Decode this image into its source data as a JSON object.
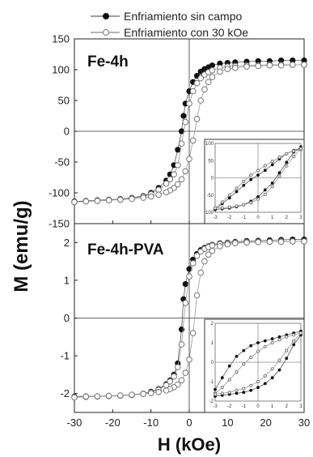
{
  "chart_data": {
    "type": "scatter",
    "xlabel": "H (kOe)",
    "ylabel": "M (emu/g)",
    "xlim": [
      -30,
      30
    ],
    "x_ticks": [
      -30,
      -20,
      -10,
      0,
      10,
      20,
      30
    ],
    "legend": {
      "placement": "top",
      "entries": [
        {
          "label": "Enfriamiento sin campo",
          "marker": "filled-circle"
        },
        {
          "label": "Enfriamiento con 30 kOe",
          "marker": "open-circle"
        }
      ]
    },
    "panels": [
      {
        "label": "Fe-4h",
        "ylim": [
          -150,
          150
        ],
        "y_ticks": [
          150,
          100,
          50,
          0,
          -50,
          -100,
          -150
        ],
        "series": [
          {
            "marker": "filled-circle",
            "x": [
              -30,
              -27,
              -24,
              -21,
              -18,
              -15,
              -12,
              -10,
              -8,
              -6,
              -5,
              -4,
              -3,
              -2,
              -1.5,
              -1,
              0,
              1,
              2,
              3,
              4,
              5,
              6,
              8,
              10,
              12,
              15,
              18,
              21,
              24,
              27,
              30
            ],
            "y": [
              -114,
              -113,
              -112,
              -111,
              -110,
              -108,
              -105,
              -100,
              -92,
              -80,
              -70,
              -55,
              -30,
              0,
              25,
              45,
              65,
              80,
              90,
              97,
              101,
              104,
              107,
              110,
              111,
              112,
              113,
              114,
              114,
              115,
              115,
              115
            ]
          },
          {
            "marker": "open-circle",
            "x": [
              -30,
              -27,
              -24,
              -21,
              -18,
              -15,
              -12,
              -10,
              -8,
              -6,
              -5,
              -4,
              -3,
              -2,
              -1,
              0,
              1,
              2,
              3,
              4,
              5,
              6,
              8,
              10,
              12,
              15,
              18,
              21,
              24,
              27,
              30
            ],
            "y": [
              -115,
              -114,
              -113,
              -112,
              -111,
              -109,
              -106,
              -102,
              -95,
              -85,
              -78,
              -70,
              -55,
              -20,
              15,
              45,
              65,
              78,
              86,
              92,
              96,
              99,
              103,
              105,
              106,
              107,
              107,
              108,
              108,
              108,
              108
            ]
          },
          {
            "marker": "open-circle",
            "x": [
              30,
              27,
              24,
              21,
              18,
              15,
              12,
              10,
              8,
              6,
              5,
              4,
              3,
              2,
              1,
              0,
              -1,
              -2,
              -3,
              -4,
              -5,
              -6,
              -8,
              -10,
              -12,
              -15,
              -18,
              -21,
              -24,
              -27,
              -30
            ],
            "y": [
              108,
              108,
              107,
              107,
              106,
              105,
              103,
              101,
              97,
              88,
              80,
              68,
              50,
              20,
              -15,
              -45,
              -65,
              -78,
              -86,
              -92,
              -96,
              -99,
              -103,
              -106,
              -108,
              -110,
              -111,
              -112,
              -113,
              -114,
              -115
            ]
          }
        ],
        "inset": {
          "xlim": [
            -3,
            3
          ],
          "ylim": [
            -100,
            100
          ],
          "x_ticks": [
            -3,
            -2,
            -1,
            0,
            1,
            2,
            3
          ],
          "y_ticks": [
            100,
            50,
            0,
            -50,
            -100
          ],
          "series": [
            {
              "marker": "filled-circle",
              "x": [
                -3,
                -2.5,
                -2,
                -1.5,
                -1,
                -0.5,
                0,
                0.5,
                1,
                1.5,
                2,
                2.5,
                3
              ],
              "y": [
                -92,
                -75,
                -58,
                -40,
                -22,
                -5,
                8,
                22,
                38,
                55,
                70,
                80,
                85
              ]
            },
            {
              "marker": "filled-circle",
              "x": [
                3,
                2.5,
                2,
                1.5,
                1,
                0.5,
                0,
                -0.5,
                -1,
                -1.5,
                -2,
                -2.5,
                -3
              ],
              "y": [
                90,
                75,
                45,
                15,
                -15,
                -35,
                -55,
                -68,
                -78,
                -84,
                -88,
                -90,
                -92
              ]
            },
            {
              "marker": "open-circle",
              "x": [
                -3,
                -2.5,
                -2,
                -1.5,
                -1,
                -0.5,
                0,
                0.5,
                1,
                1.5,
                2,
                2.5,
                3
              ],
              "y": [
                -88,
                -70,
                -50,
                -30,
                -10,
                8,
                22,
                35,
                48,
                60,
                70,
                78,
                82
              ]
            },
            {
              "marker": "open-circle",
              "x": [
                3,
                2.5,
                2,
                1.5,
                1,
                0.5,
                0,
                -0.5,
                -1,
                -1.5,
                -2,
                -2.5,
                -3
              ],
              "y": [
                85,
                62,
                35,
                5,
                -25,
                -48,
                -62,
                -72,
                -78,
                -82,
                -85,
                -87,
                -88
              ]
            }
          ]
        }
      },
      {
        "label": "Fe-4h-PVA",
        "ylim": [
          -2.5,
          2.5
        ],
        "y_ticks": [
          2,
          1,
          0,
          -1,
          -2
        ],
        "series": [
          {
            "marker": "filled-circle",
            "x": [
              -30,
              -27,
              -24,
              -21,
              -18,
              -15,
              -12,
              -10,
              -8,
              -6,
              -5,
              -4,
              -3,
              -2,
              -1.5,
              -1,
              0,
              1,
              2,
              3,
              4,
              5,
              6,
              8,
              10,
              12,
              15,
              18,
              21,
              24,
              27,
              30
            ],
            "y": [
              -2.08,
              -2.07,
              -2.07,
              -2.06,
              -2.05,
              -2.03,
              -2.0,
              -1.95,
              -1.88,
              -1.75,
              -1.65,
              -1.5,
              -1.2,
              -0.3,
              0.5,
              0.9,
              1.3,
              1.55,
              1.7,
              1.8,
              1.86,
              1.9,
              1.94,
              1.98,
              2.0,
              2.02,
              2.04,
              2.05,
              2.06,
              2.07,
              2.08,
              2.08
            ]
          },
          {
            "marker": "open-circle",
            "x": [
              -30,
              -27,
              -24,
              -21,
              -18,
              -15,
              -12,
              -10,
              -8,
              -6,
              -5,
              -4,
              -3,
              -2,
              -1,
              0,
              1,
              2,
              3,
              4,
              5,
              6,
              8,
              10,
              12,
              15,
              18,
              21,
              24,
              27,
              30
            ],
            "y": [
              -2.1,
              -2.09,
              -2.08,
              -2.07,
              -2.06,
              -2.04,
              -2.01,
              -1.97,
              -1.9,
              -1.78,
              -1.68,
              -1.55,
              -1.3,
              -0.7,
              0.4,
              1.1,
              1.45,
              1.65,
              1.76,
              1.83,
              1.88,
              1.92,
              1.96,
              1.98,
              2.0,
              2.01,
              2.02,
              2.02,
              2.03,
              2.03,
              2.03
            ]
          },
          {
            "marker": "open-circle",
            "x": [
              30,
              27,
              24,
              21,
              18,
              15,
              12,
              10,
              8,
              6,
              5,
              4,
              3,
              2,
              1,
              0,
              -1,
              -2,
              -3,
              -4,
              -5,
              -6,
              -8,
              -10,
              -12,
              -15,
              -18,
              -21,
              -24,
              -27,
              -30
            ],
            "y": [
              2.03,
              2.03,
              2.02,
              2.02,
              2.01,
              2.0,
              1.98,
              1.95,
              1.9,
              1.78,
              1.68,
              1.5,
              1.2,
              0.6,
              -0.4,
              -1.1,
              -1.45,
              -1.65,
              -1.76,
              -1.83,
              -1.88,
              -1.92,
              -1.96,
              -1.99,
              -2.01,
              -2.03,
              -2.05,
              -2.06,
              -2.07,
              -2.08,
              -2.1
            ]
          }
        ],
        "inset": {
          "xlim": [
            -3,
            3
          ],
          "ylim": [
            -2,
            2
          ],
          "x_ticks": [
            -3,
            -2,
            -1,
            0,
            1,
            2,
            3
          ],
          "y_ticks": [
            2,
            1,
            0,
            -1,
            -2
          ],
          "series": [
            {
              "marker": "filled-circle",
              "x": [
                -3,
                -2.5,
                -2,
                -1.5,
                -1,
                -0.5,
                0,
                0.5,
                1,
                1.5,
                2,
                2.5,
                3
              ],
              "y": [
                -1.4,
                -0.8,
                -0.2,
                0.3,
                0.6,
                0.85,
                1.0,
                1.1,
                1.2,
                1.3,
                1.4,
                1.5,
                1.6
              ]
            },
            {
              "marker": "filled-circle",
              "x": [
                3,
                2.5,
                2,
                1.5,
                1,
                0.5,
                0,
                -0.5,
                -1,
                -1.5,
                -2,
                -2.5,
                -3
              ],
              "y": [
                1.4,
                0.9,
                0.2,
                -0.4,
                -0.8,
                -1.1,
                -1.3,
                -1.45,
                -1.55,
                -1.6,
                -1.65,
                -1.7,
                -1.75
              ]
            },
            {
              "marker": "open-circle",
              "x": [
                -3,
                -2.5,
                -2,
                -1.5,
                -1,
                -0.5,
                0,
                0.5,
                1,
                1.5,
                2,
                2.5,
                3
              ],
              "y": [
                -1.6,
                -1.3,
                -0.9,
                -0.5,
                -0.1,
                0.25,
                0.55,
                0.8,
                1.0,
                1.15,
                1.3,
                1.4,
                1.5
              ]
            },
            {
              "marker": "open-circle",
              "x": [
                3,
                2.5,
                2,
                1.5,
                1,
                0.5,
                0,
                -0.5,
                -1,
                -1.5,
                -2,
                -2.5,
                -3
              ],
              "y": [
                1.5,
                1.1,
                0.6,
                0.1,
                -0.35,
                -0.7,
                -1.0,
                -1.2,
                -1.35,
                -1.45,
                -1.55,
                -1.6,
                -1.65
              ]
            }
          ]
        }
      }
    ]
  }
}
